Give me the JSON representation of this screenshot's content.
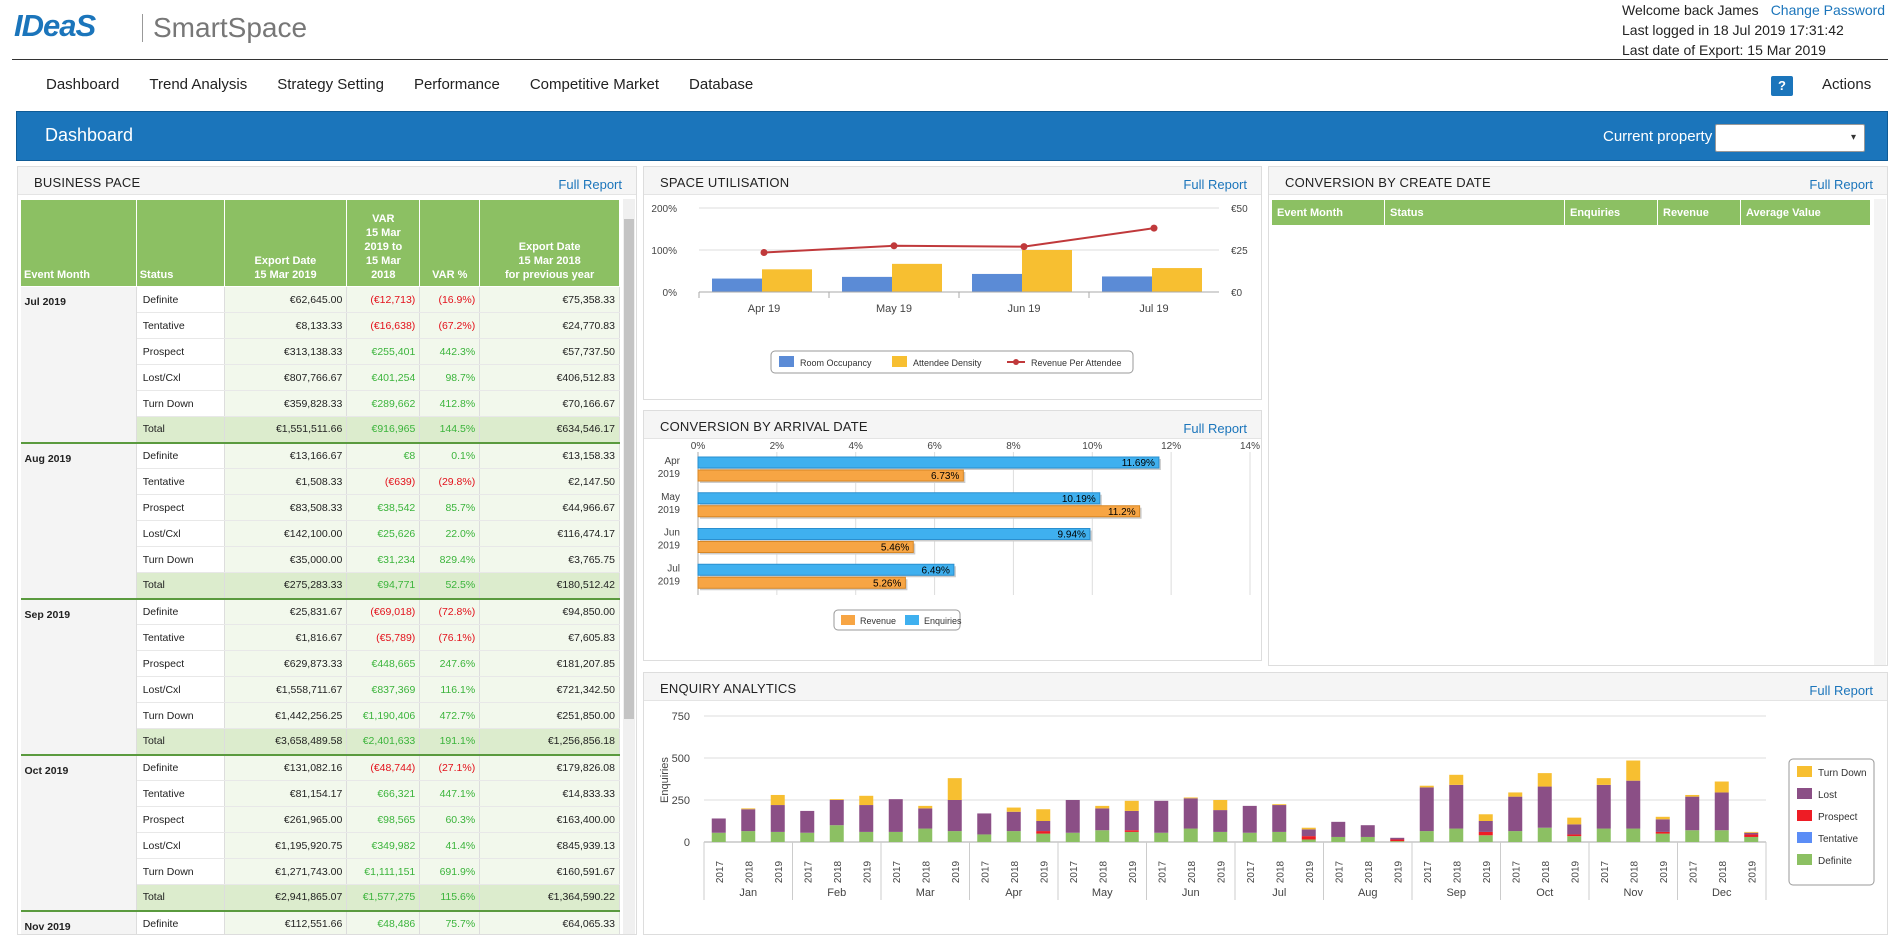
{
  "app": {
    "logo": "IDeaS",
    "product": "SmartSpace"
  },
  "user": {
    "welcome": "Welcome back James",
    "change_password": "Change Password",
    "last_logged": "Last logged in 18 Jul 2019 17:31:42",
    "last_export": "Last date of Export: 15 Mar 2019"
  },
  "nav": {
    "items": [
      "Dashboard",
      "Trend Analysis",
      "Strategy Setting",
      "Performance",
      "Competitive Market",
      "Database"
    ],
    "help": "?",
    "actions": "Actions"
  },
  "banner": {
    "title": "Dashboard",
    "property_label": "Current property",
    "property_value": "",
    "dropdown_icon": "▾"
  },
  "full_report": "Full Report",
  "business_pace": {
    "title": "BUSINESS PACE",
    "headers": {
      "month": "Event Month",
      "status": "Status",
      "export": [
        "Export Date",
        "15 Mar 2019"
      ],
      "var": [
        "VAR",
        "15 Mar",
        "2019 to",
        "15 Mar",
        "2018"
      ],
      "varpct": "VAR %",
      "prev": [
        "Export Date",
        "15 Mar 2018",
        "for previous year"
      ]
    },
    "groups": [
      {
        "month": "Jul 2019",
        "rows": [
          [
            "Definite",
            "€62,645.00",
            "(€12,713)",
            "(16.9%)",
            "€75,358.33"
          ],
          [
            "Tentative",
            "€8,133.33",
            "(€16,638)",
            "(67.2%)",
            "€24,770.83"
          ],
          [
            "Prospect",
            "€313,138.33",
            "€255,401",
            "442.3%",
            "€57,737.50"
          ],
          [
            "Lost/Cxl",
            "€807,766.67",
            "€401,254",
            "98.7%",
            "€406,512.83"
          ],
          [
            "Turn Down",
            "€359,828.33",
            "€289,662",
            "412.8%",
            "€70,166.67"
          ],
          [
            "Total",
            "€1,551,511.66",
            "€916,965",
            "144.5%",
            "€634,546.17"
          ]
        ]
      },
      {
        "month": "Aug 2019",
        "rows": [
          [
            "Definite",
            "€13,166.67",
            "€8",
            "0.1%",
            "€13,158.33"
          ],
          [
            "Tentative",
            "€1,508.33",
            "(€639)",
            "(29.8%)",
            "€2,147.50"
          ],
          [
            "Prospect",
            "€83,508.33",
            "€38,542",
            "85.7%",
            "€44,966.67"
          ],
          [
            "Lost/Cxl",
            "€142,100.00",
            "€25,626",
            "22.0%",
            "€116,474.17"
          ],
          [
            "Turn Down",
            "€35,000.00",
            "€31,234",
            "829.4%",
            "€3,765.75"
          ],
          [
            "Total",
            "€275,283.33",
            "€94,771",
            "52.5%",
            "€180,512.42"
          ]
        ]
      },
      {
        "month": "Sep 2019",
        "rows": [
          [
            "Definite",
            "€25,831.67",
            "(€69,018)",
            "(72.8%)",
            "€94,850.00"
          ],
          [
            "Tentative",
            "€1,816.67",
            "(€5,789)",
            "(76.1%)",
            "€7,605.83"
          ],
          [
            "Prospect",
            "€629,873.33",
            "€448,665",
            "247.6%",
            "€181,207.85"
          ],
          [
            "Lost/Cxl",
            "€1,558,711.67",
            "€837,369",
            "116.1%",
            "€721,342.50"
          ],
          [
            "Turn Down",
            "€1,442,256.25",
            "€1,190,406",
            "472.7%",
            "€251,850.00"
          ],
          [
            "Total",
            "€3,658,489.58",
            "€2,401,633",
            "191.1%",
            "€1,256,856.18"
          ]
        ]
      },
      {
        "month": "Oct 2019",
        "rows": [
          [
            "Definite",
            "€131,082.16",
            "(€48,744)",
            "(27.1%)",
            "€179,826.08"
          ],
          [
            "Tentative",
            "€81,154.17",
            "€66,321",
            "447.1%",
            "€14,833.33"
          ],
          [
            "Prospect",
            "€261,965.00",
            "€98,565",
            "60.3%",
            "€163,400.00"
          ],
          [
            "Lost/Cxl",
            "€1,195,920.75",
            "€349,982",
            "41.4%",
            "€845,939.13"
          ],
          [
            "Turn Down",
            "€1,271,743.00",
            "€1,111,151",
            "691.9%",
            "€160,591.67"
          ],
          [
            "Total",
            "€2,941,865.07",
            "€1,577,275",
            "115.6%",
            "€1,364,590.22"
          ]
        ]
      },
      {
        "month": "Nov 2019",
        "rows": [
          [
            "Definite",
            "€112,551.66",
            "€48,486",
            "75.7%",
            "€64,065.33"
          ]
        ]
      }
    ]
  },
  "space_utilisation": {
    "title": "SPACE UTILISATION",
    "left_ticks": [
      "200%",
      "100%",
      "0%"
    ],
    "right_ticks": [
      "€50",
      "€25",
      "€0"
    ],
    "legend": [
      "Room Occupancy",
      "Attendee Density",
      "Revenue Per Attendee"
    ]
  },
  "conversion_arrival": {
    "title": "CONVERSION BY ARRIVAL DATE",
    "ticks": [
      "0%",
      "2%",
      "4%",
      "6%",
      "8%",
      "10%",
      "12%",
      "14%"
    ],
    "legend": [
      "Revenue",
      "Enquiries"
    ]
  },
  "conversion_create": {
    "title": "CONVERSION BY CREATE DATE",
    "headers": [
      "Event Month",
      "Status",
      "Enquiries",
      "Revenue",
      "Average Value"
    ]
  },
  "enquiry_analytics": {
    "title": "ENQUIRY ANALYTICS",
    "ylabel": "Enquiries",
    "yticks": [
      "750",
      "500",
      "250",
      "0"
    ],
    "legend": [
      "Turn Down",
      "Lost",
      "Prospect",
      "Tentative",
      "Definite"
    ]
  },
  "colors": {
    "blue": "#1b75bb",
    "green": "#8cc063",
    "room": "#5b8bd6",
    "attendee": "#f7bf31",
    "rpa": "#c0393b",
    "lost": "#8b4f86",
    "prospect": "#ee1c25",
    "tentative": "#5b8df6",
    "definite": "#8cc063"
  },
  "chart_data": [
    {
      "type": "bar",
      "categories": [
        "Apr 19",
        "May 19",
        "Jun 19",
        "Jul 19"
      ],
      "series": [
        {
          "name": "Room Occupancy",
          "values": [
            32,
            36,
            43,
            37
          ],
          "axis": "left"
        },
        {
          "name": "Attendee Density",
          "values": [
            54,
            67,
            100,
            57
          ],
          "axis": "left"
        },
        {
          "name": "Revenue Per Attendee",
          "values": [
            23.5,
            27.5,
            27,
            38
          ],
          "axis": "right",
          "type": "line"
        }
      ],
      "ylim": [
        0,
        200
      ],
      "y2lim": [
        0,
        50
      ]
    },
    {
      "type": "bar",
      "orientation": "horizontal",
      "categories": [
        "Apr 2019",
        "May 2019",
        "Jun 2019",
        "Jul 2019"
      ],
      "series": [
        {
          "name": "Enquiries",
          "values": [
            11.69,
            10.19,
            9.94,
            6.49
          ],
          "labels": [
            "11.69%",
            "10.19%",
            "9.94%",
            "6.49%"
          ]
        },
        {
          "name": "Revenue",
          "values": [
            6.73,
            11.2,
            5.46,
            5.26
          ],
          "labels": [
            "6.73%",
            "11.2%",
            "5.46%",
            "5.26%"
          ]
        }
      ],
      "xlim": [
        0,
        14
      ]
    },
    {
      "type": "bar",
      "stacked": true,
      "ylabel": "Enquiries",
      "ylim": [
        0,
        750
      ],
      "months": [
        "Jan",
        "Feb",
        "Mar",
        "Apr",
        "May",
        "Jun",
        "Jul",
        "Aug",
        "Sep",
        "Oct",
        "Nov",
        "Dec"
      ],
      "years": [
        "2017",
        "2018",
        "2019"
      ],
      "series_names": [
        "Definite",
        "Tentative",
        "Prospect",
        "Lost",
        "Turn Down"
      ],
      "stacks": [
        [
          [
            55,
            0,
            0,
            85,
            0
          ],
          [
            65,
            0,
            0,
            130,
            5
          ],
          [
            60,
            0,
            0,
            160,
            60
          ]
        ],
        [
          [
            55,
            0,
            0,
            130,
            0
          ],
          [
            100,
            0,
            0,
            150,
            5
          ],
          [
            60,
            0,
            0,
            160,
            55
          ]
        ],
        [
          [
            60,
            0,
            0,
            195,
            0
          ],
          [
            80,
            0,
            0,
            120,
            15
          ],
          [
            65,
            0,
            0,
            185,
            130
          ]
        ],
        [
          [
            45,
            0,
            0,
            125,
            0
          ],
          [
            65,
            0,
            0,
            115,
            25
          ],
          [
            50,
            0,
            15,
            60,
            70
          ]
        ],
        [
          [
            55,
            0,
            0,
            195,
            0
          ],
          [
            70,
            0,
            0,
            130,
            15
          ],
          [
            60,
            0,
            10,
            115,
            60
          ]
        ],
        [
          [
            55,
            0,
            0,
            190,
            0
          ],
          [
            80,
            0,
            0,
            180,
            5
          ],
          [
            60,
            0,
            0,
            130,
            60
          ]
        ],
        [
          [
            55,
            0,
            0,
            160,
            0
          ],
          [
            60,
            0,
            0,
            160,
            5
          ],
          [
            15,
            0,
            20,
            40,
            10
          ]
        ],
        [
          [
            30,
            0,
            0,
            90,
            0
          ],
          [
            30,
            0,
            0,
            70,
            0
          ],
          [
            5,
            0,
            10,
            10,
            0
          ]
        ],
        [
          [
            65,
            0,
            0,
            260,
            10
          ],
          [
            80,
            0,
            0,
            260,
            60
          ],
          [
            40,
            0,
            20,
            65,
            40
          ]
        ],
        [
          [
            65,
            0,
            0,
            205,
            25
          ],
          [
            85,
            0,
            0,
            245,
            80
          ],
          [
            35,
            0,
            10,
            60,
            40
          ]
        ],
        [
          [
            80,
            0,
            0,
            260,
            40
          ],
          [
            80,
            0,
            0,
            285,
            120
          ],
          [
            50,
            0,
            10,
            75,
            15
          ]
        ],
        [
          [
            70,
            0,
            0,
            200,
            10
          ],
          [
            70,
            0,
            0,
            225,
            65
          ],
          [
            30,
            0,
            15,
            10,
            5
          ]
        ]
      ]
    }
  ]
}
